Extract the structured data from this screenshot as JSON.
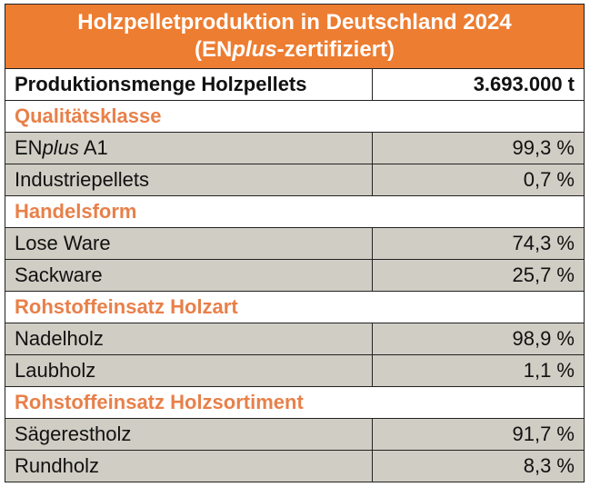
{
  "title_line1": "Holzpelletproduktion in Deutschland 2024",
  "title_line2_prefix": "(EN",
  "title_line2_italic": "plus",
  "title_line2_suffix": "-zertifiziert)",
  "production": {
    "label": "Produktionsmenge Holzpellets",
    "value": "3.693.000 t"
  },
  "sections": [
    {
      "title": "Qualitätsklasse",
      "rows": [
        {
          "label_prefix": "EN",
          "label_italic": "plus",
          "label": " A1",
          "value": "99,3 %"
        },
        {
          "label": "Industriepellets",
          "value": "0,7 %"
        }
      ]
    },
    {
      "title": "Handelsform",
      "rows": [
        {
          "label": "Lose Ware",
          "value": "74,3 %"
        },
        {
          "label": "Sackware",
          "value": "25,7 %"
        }
      ]
    },
    {
      "title": "Rohstoffeinsatz Holzart",
      "rows": [
        {
          "label": "Nadelholz",
          "value": "98,9 %"
        },
        {
          "label": "Laubholz",
          "value": "1,1 %"
        }
      ]
    },
    {
      "title": "Rohstoffeinsatz Holzsortiment",
      "rows": [
        {
          "label": "Sägerestholz",
          "value": "91,7 %"
        },
        {
          "label": "Rundholz",
          "value": "8,3 %"
        }
      ]
    }
  ]
}
